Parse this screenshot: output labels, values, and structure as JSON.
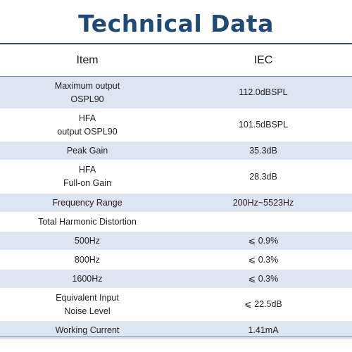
{
  "title": "Technical Data",
  "header": {
    "item": "Item",
    "iec": "IEC"
  },
  "rows": [
    {
      "item_lines": [
        "Maximum output",
        "OSPL90"
      ],
      "iec": "112.0dBSPL"
    },
    {
      "item_lines": [
        "HFA",
        "output OSPL90"
      ],
      "iec": "101.5dBSPL"
    },
    {
      "item_lines": [
        "Peak Gain"
      ],
      "iec": "35.3dB"
    },
    {
      "item_lines": [
        "HFA",
        "Full-on Gain"
      ],
      "iec": "28.3dB"
    },
    {
      "item_lines": [
        "Frequency Range"
      ],
      "iec": "200Hz~5523Hz"
    },
    {
      "item_lines": [
        "Total Harmonic Distortion"
      ],
      "iec": ""
    },
    {
      "item_lines": [
        "500Hz"
      ],
      "iec": "⩽ 0.9%"
    },
    {
      "item_lines": [
        "800Hz"
      ],
      "iec": "⩽ 0.3%"
    },
    {
      "item_lines": [
        "1600Hz"
      ],
      "iec": "⩽ 0.3%"
    },
    {
      "item_lines": [
        "Equivalent Input",
        "Noise Level"
      ],
      "iec": "⩽ 22.5dB"
    },
    {
      "item_lines": [
        "Working Current"
      ],
      "iec": "1.41mA"
    }
  ],
  "colors": {
    "title": "#1e4a78",
    "row_shade": "#dde5f0",
    "rule": "#2a4f78"
  }
}
